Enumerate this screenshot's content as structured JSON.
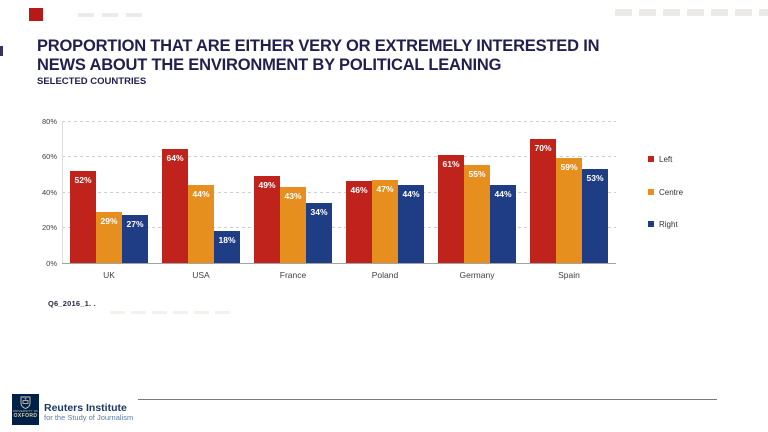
{
  "slide": {
    "title_line1": "PROPORTION THAT ARE EITHER VERY OR EXTREMELY INTERESTED IN",
    "title_line2": "NEWS ABOUT THE ENVIRONMENT BY POLITICAL LEANING",
    "subtitle": "SELECTED COUNTRIES",
    "source_note": "Q6_2016_1. .",
    "colors": {
      "title_navy": "#211f4e",
      "corner_accent_red": "#b51918",
      "footer_navy": "#002147"
    }
  },
  "chart_data": {
    "type": "bar",
    "title": "",
    "xlabel": "",
    "ylabel": "",
    "categories": [
      "UK",
      "USA",
      "France",
      "Poland",
      "Germany",
      "Spain"
    ],
    "series": [
      {
        "name": "Left",
        "color": "#bf231b",
        "values": [
          52,
          64,
          49,
          46,
          61,
          70
        ]
      },
      {
        "name": "Centre",
        "color": "#e68f1e",
        "values": [
          29,
          44,
          43,
          47,
          55,
          59
        ]
      },
      {
        "name": "Right",
        "color": "#1e3d85",
        "values": [
          27,
          18,
          34,
          44,
          44,
          53
        ]
      }
    ],
    "value_suffix": "%",
    "ylim": [
      0,
      80
    ],
    "yticks": [
      "0%",
      "20%",
      "40%",
      "60%",
      "80%"
    ],
    "grid": true,
    "grid_style": "dashed",
    "legend_position": "right"
  },
  "footer": {
    "university_line1": "UNIVERSITY OF",
    "university_line2": "OXFORD",
    "org_name": "Reuters Institute",
    "org_tagline": "for the Study of Journalism"
  }
}
